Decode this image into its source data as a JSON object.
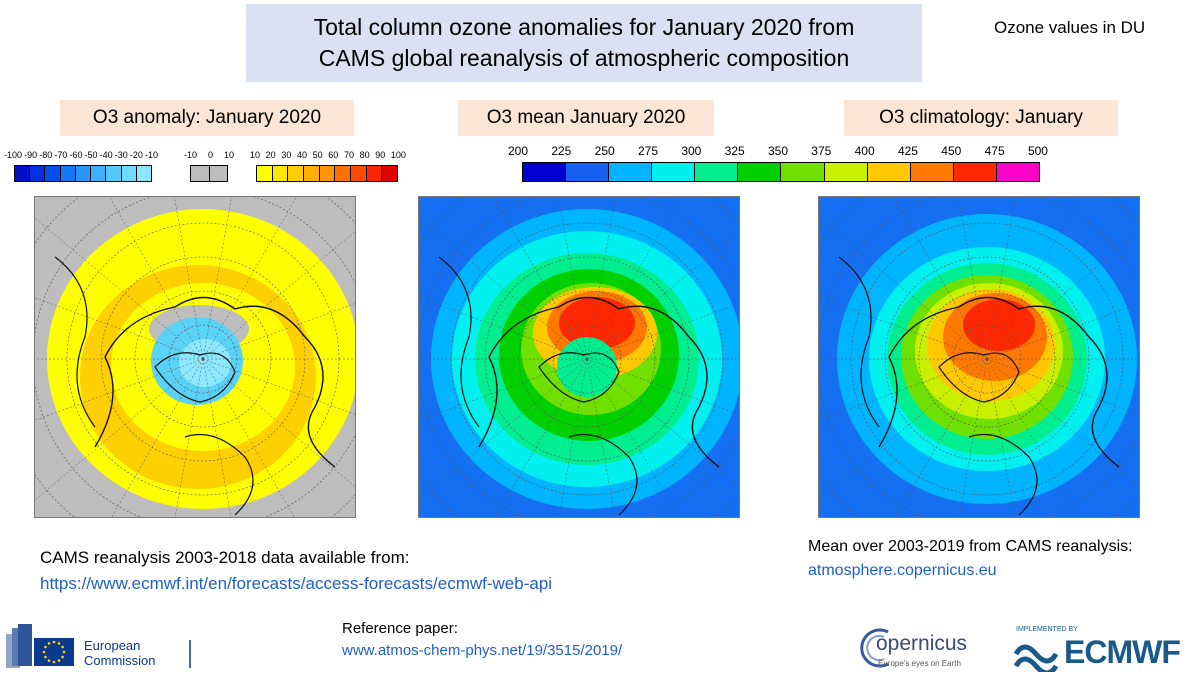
{
  "header": {
    "title_line1": "Total column ozone anomalies for January 2020 from",
    "title_line2": "CAMS global reanalysis of atmospheric composition",
    "units_note": "Ozone values in DU"
  },
  "panels": {
    "anomaly": {
      "title": "O3 anomaly: January 2020",
      "scale_neg": [
        "-100",
        "-90",
        "-80",
        "-70",
        "-60",
        "-50",
        "-40",
        "-30",
        "-20",
        "-10"
      ],
      "scale_mid": [
        "-10",
        "0",
        "10"
      ],
      "scale_pos": [
        "10",
        "20",
        "30",
        "40",
        "50",
        "60",
        "70",
        "80",
        "90",
        "100"
      ],
      "colors_neg": [
        "#0010c8",
        "#0030e0",
        "#0050f0",
        "#1478f5",
        "#2896f8",
        "#3cb0fa",
        "#55c8fc",
        "#70dcfd",
        "#8ce8fe"
      ],
      "colors_mid": [
        "#bdbdbd",
        "#bdbdbd"
      ],
      "colors_pos": [
        "#ffff00",
        "#ffe600",
        "#ffcc00",
        "#ffb000",
        "#ff9400",
        "#ff7000",
        "#ff4a00",
        "#ff2400",
        "#e00000"
      ]
    },
    "mean": {
      "title": "O3 mean January 2020"
    },
    "climatology": {
      "title": "O3 climatology: January"
    },
    "shared_scale": {
      "ticks": [
        "200",
        "225",
        "250",
        "275",
        "300",
        "325",
        "350",
        "375",
        "400",
        "425",
        "450",
        "475",
        "500"
      ],
      "colors": [
        "#0000d0",
        "#1560f0",
        "#00b4ff",
        "#00f0f0",
        "#00ee90",
        "#00d000",
        "#70e000",
        "#c8f000",
        "#ffc800",
        "#ff7800",
        "#ff2800",
        "#ff00c8"
      ]
    }
  },
  "footer": {
    "left_line1": "CAMS reanalysis 2003-2018 data available from:",
    "left_link": "https://www.ecmwf.int/en/forecasts/access-forecasts/ecmwf-web-api",
    "ref_label": "Reference paper:",
    "ref_link": "www.atmos-chem-phys.net/19/3515/2019/",
    "right_line1": "Mean over 2003-2019 from CAMS reanalysis:",
    "right_link": "atmosphere.copernicus.eu"
  },
  "logos": {
    "ec_line1": "European",
    "ec_line2": "Commission",
    "copernicus_name": "opernicus",
    "copernicus_tagline": "Europe's eyes on Earth",
    "ecmwf_implemented": "IMPLEMENTED BY",
    "ecmwf_name": "ECMWF"
  }
}
